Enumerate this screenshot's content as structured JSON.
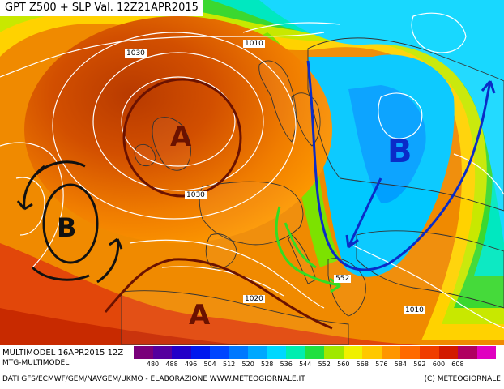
{
  "title": "GPT Z500 + SLP Val. 12Z21APR2015",
  "pressure_labels": {
    "l1030": "1030",
    "l1010_north": "1010",
    "l1030_channel": "1030",
    "l1020": "1020",
    "l1010_east": "1010",
    "l552": "552"
  },
  "systems": {
    "high_north": "A",
    "high_south": "A",
    "low_east": "B",
    "low_atlantic": "B"
  },
  "footer": {
    "run": "MULTIMODEL 16APR2015 12Z",
    "model": "MTG-MULTIMODEL",
    "credit": "DATI GFS/ECMWF/GEM/NAVGEM/UKMO - ELABORAZIONE WWW.METEOGIORNALE.IT",
    "copyright": "(C) METEOGIORNALE"
  },
  "legend": {
    "ticks": [
      "480",
      "488",
      "496",
      "504",
      "512",
      "520",
      "528",
      "536",
      "544",
      "552",
      "560",
      "568",
      "576",
      "584",
      "592",
      "600",
      "608"
    ],
    "colors": [
      "#7a007a",
      "#55009e",
      "#2200c8",
      "#0018ee",
      "#0046ff",
      "#0078ff",
      "#00a8ff",
      "#00d8ff",
      "#00eeb0",
      "#20e040",
      "#a0e800",
      "#f0f000",
      "#ffc800",
      "#ff9600",
      "#ff6a00",
      "#f03c00",
      "#d21a00",
      "#b00060",
      "#e000c0"
    ]
  },
  "colors": {
    "high_marker": "#6b1200",
    "low_marker_east": "#0a2cc8",
    "low_marker_atlantic": "#111111",
    "green_arrow": "#33dd22",
    "isobar": "#ffffff",
    "coastline": "#333333"
  }
}
